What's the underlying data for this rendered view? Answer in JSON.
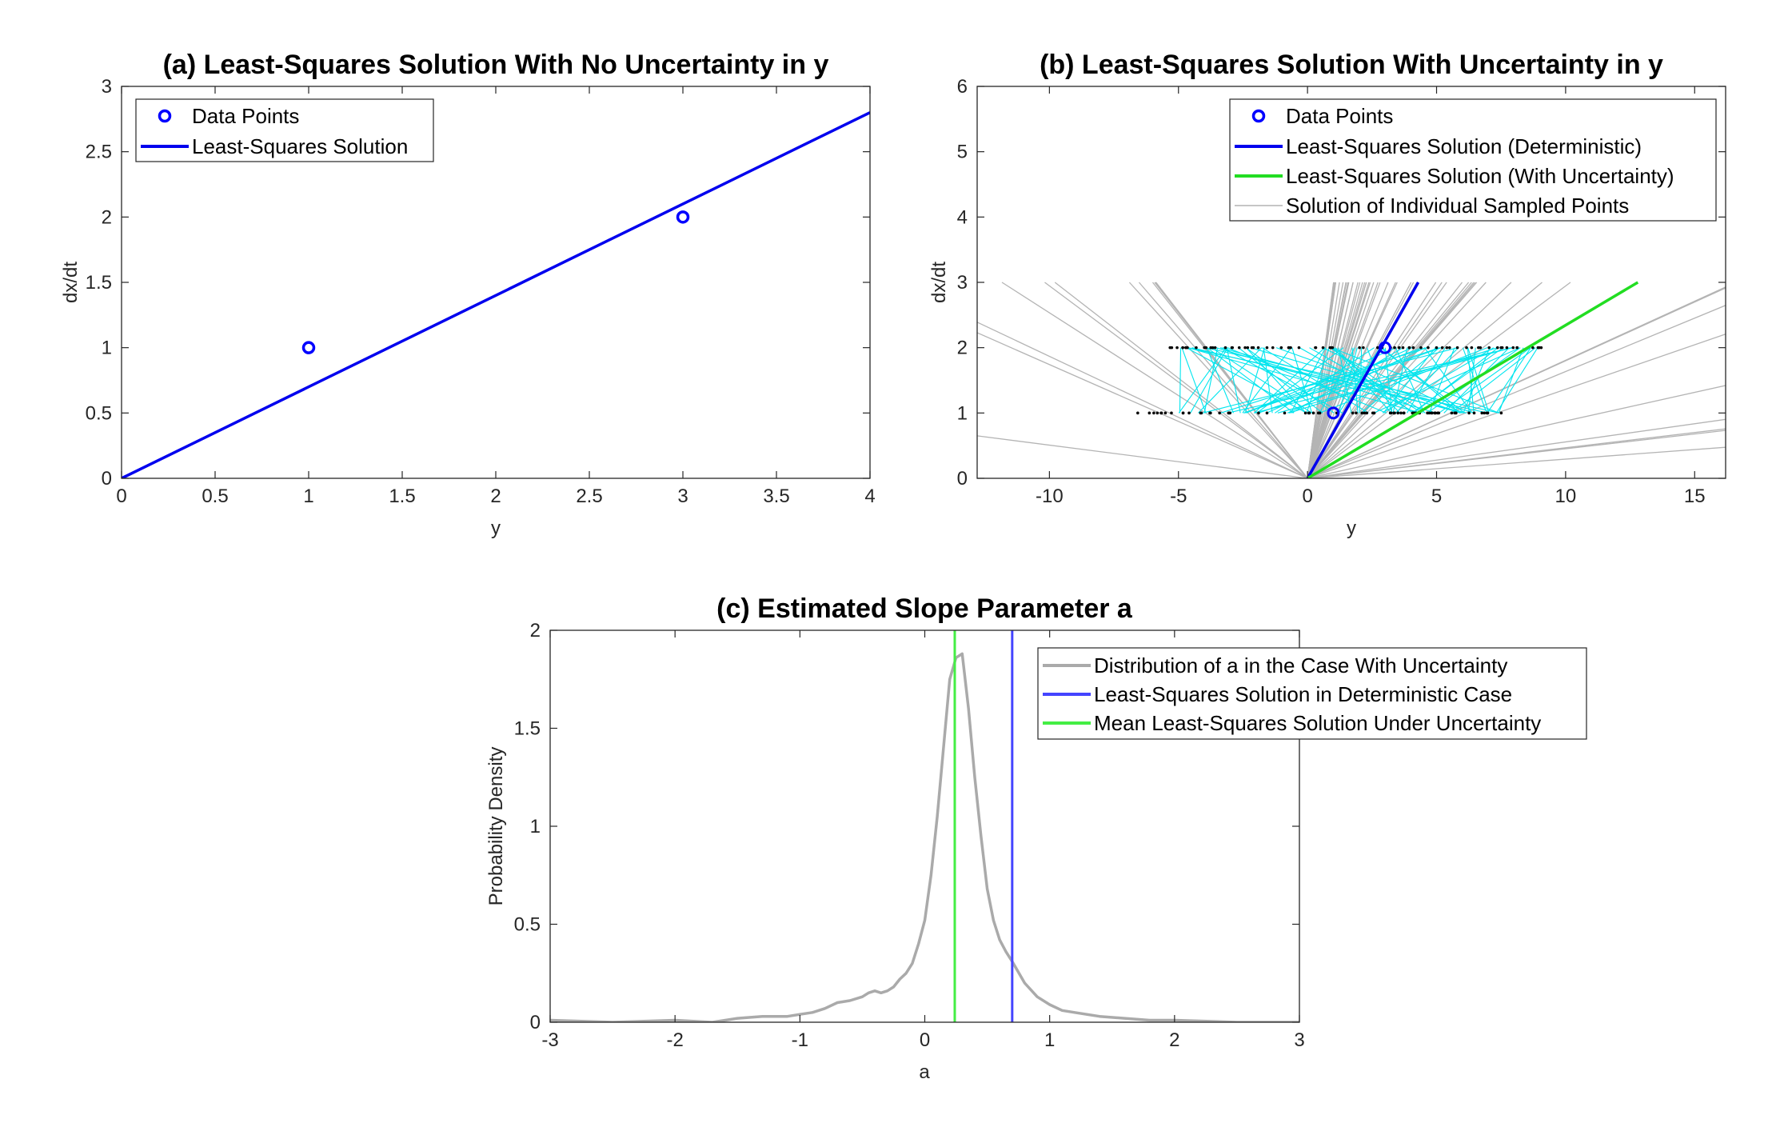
{
  "chart_data": [
    {
      "id": "a",
      "type": "line",
      "title": "(a) Least-Squares Solution With No Uncertainty in y",
      "xlabel": "y",
      "ylabel": "dx/dt",
      "xlim": [
        0,
        4
      ],
      "ylim": [
        0,
        3
      ],
      "xticks": [
        0,
        0.5,
        1,
        1.5,
        2,
        2.5,
        3,
        3.5,
        4
      ],
      "yticks": [
        0,
        0.5,
        1,
        1.5,
        2,
        2.5,
        3
      ],
      "grid": false,
      "legend_position": "top-left",
      "colors": {
        "data": "#0000ff",
        "ls": "#0000ee"
      },
      "series": [
        {
          "name": "Data Points",
          "kind": "scatter",
          "x": [
            1,
            3
          ],
          "y": [
            1,
            2
          ]
        },
        {
          "name": "Least-Squares Solution",
          "kind": "line",
          "x": [
            0,
            4
          ],
          "y": [
            0,
            2.8
          ]
        }
      ]
    },
    {
      "id": "b",
      "type": "line",
      "title": "(b) Least-Squares Solution With Uncertainty in y",
      "xlabel": "y",
      "ylabel": "dx/dt",
      "xlim": [
        -12.8,
        16.2
      ],
      "ylim": [
        0,
        6
      ],
      "xticks": [
        -10,
        -5,
        0,
        5,
        10,
        15
      ],
      "yticks": [
        0,
        1,
        2,
        3,
        4,
        5,
        6
      ],
      "grid": false,
      "legend_position": "top-right",
      "colors": {
        "data": "#0000ff",
        "det": "#0000ee",
        "unc": "#22dd22",
        "samples": "#b4b4b4",
        "links": "#00e5ee",
        "sampled_points": "#000000"
      },
      "series": [
        {
          "name": "Data Points",
          "kind": "scatter",
          "x": [
            1,
            3
          ],
          "y": [
            1,
            2
          ]
        },
        {
          "name": "Least-Squares Solution (Deterministic)",
          "kind": "line",
          "x": [
            0,
            4.29
          ],
          "y": [
            0,
            3
          ]
        },
        {
          "name": "Least-Squares Solution (With Uncertainty)",
          "kind": "line",
          "x": [
            0,
            12.8
          ],
          "y": [
            0,
            3
          ]
        },
        {
          "name": "Solution of Individual Sampled Points",
          "kind": "line_family",
          "count": 70,
          "slope_range": [
            -1.2,
            3.5
          ]
        }
      ]
    },
    {
      "id": "c",
      "type": "line",
      "title": "(c) Estimated Slope Parameter a",
      "xlabel": "a",
      "ylabel": "Probability Density",
      "xlim": [
        -3,
        3
      ],
      "ylim": [
        0,
        2
      ],
      "xticks": [
        -3,
        -2,
        -1,
        0,
        1,
        2,
        3
      ],
      "yticks": [
        0,
        0.5,
        1,
        1.5,
        2
      ],
      "grid": false,
      "legend_position": "top-right",
      "colors": {
        "dist": "#aaaaaa",
        "det": "#4444ff",
        "mean": "#44ee44"
      },
      "series": [
        {
          "name": "Distribution of a in the Case With Uncertainty",
          "kind": "line",
          "x": [
            -3,
            -2.5,
            -2,
            -1.7,
            -1.5,
            -1.3,
            -1.1,
            -1.0,
            -0.9,
            -0.8,
            -0.7,
            -0.6,
            -0.5,
            -0.45,
            -0.4,
            -0.35,
            -0.3,
            -0.25,
            -0.2,
            -0.15,
            -0.1,
            -0.05,
            0,
            0.05,
            0.1,
            0.15,
            0.2,
            0.25,
            0.3,
            0.35,
            0.4,
            0.45,
            0.5,
            0.55,
            0.6,
            0.65,
            0.7,
            0.8,
            0.9,
            1.0,
            1.1,
            1.2,
            1.4,
            1.6,
            1.8,
            2.0,
            2.5,
            3
          ],
          "y": [
            0.01,
            0.0,
            0.01,
            0.0,
            0.02,
            0.03,
            0.03,
            0.04,
            0.05,
            0.07,
            0.1,
            0.11,
            0.13,
            0.15,
            0.16,
            0.15,
            0.16,
            0.18,
            0.22,
            0.25,
            0.3,
            0.4,
            0.52,
            0.75,
            1.05,
            1.4,
            1.75,
            1.86,
            1.88,
            1.6,
            1.25,
            0.95,
            0.68,
            0.52,
            0.42,
            0.36,
            0.31,
            0.2,
            0.13,
            0.09,
            0.06,
            0.05,
            0.03,
            0.02,
            0.01,
            0.01,
            0.0,
            0.0
          ]
        },
        {
          "name": "Least-Squares Solution in Deterministic Case",
          "kind": "vline",
          "x": 0.7
        },
        {
          "name": "Mean Least-Squares Solution Under Uncertainty",
          "kind": "vline",
          "x": 0.24
        }
      ]
    }
  ]
}
